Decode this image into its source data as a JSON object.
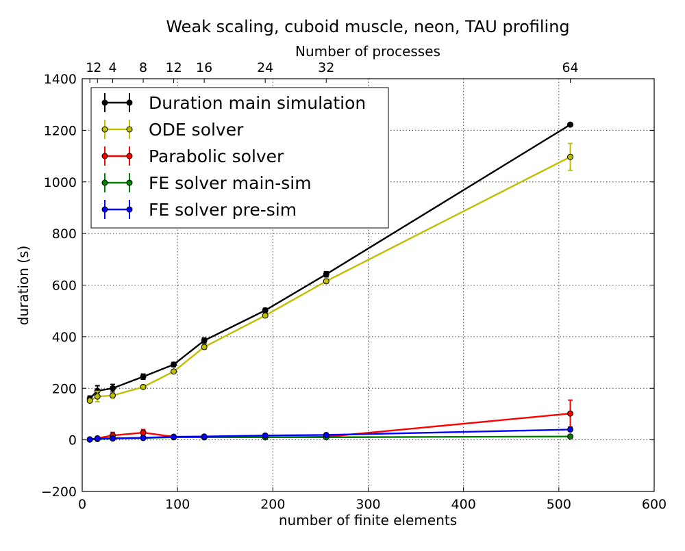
{
  "chart_data": {
    "type": "line",
    "title": "Weak scaling, cuboid muscle, neon, TAU profiling",
    "xlabel": "number of finite elements",
    "ylabel": "duration (s)",
    "top_xlabel": "Number of processes",
    "xlim": [
      0,
      600
    ],
    "ylim": [
      -200,
      1400
    ],
    "x_ticks": [
      0,
      100,
      200,
      300,
      400,
      500,
      600
    ],
    "y_ticks": [
      -200,
      0,
      200,
      400,
      600,
      800,
      1000,
      1200,
      1400
    ],
    "x_tick_labels": [
      "0",
      "100",
      "200",
      "300",
      "400",
      "500",
      "600"
    ],
    "y_tick_labels": [
      "−200",
      "0",
      "200",
      "400",
      "600",
      "800",
      "1000",
      "1200",
      "1400"
    ],
    "top_ticks": [
      {
        "x": 8,
        "label": "1"
      },
      {
        "x": 16,
        "label": "2"
      },
      {
        "x": 32,
        "label": "4"
      },
      {
        "x": 64,
        "label": "8"
      },
      {
        "x": 96,
        "label": "12"
      },
      {
        "x": 128,
        "label": "16"
      },
      {
        "x": 192,
        "label": "24"
      },
      {
        "x": 256,
        "label": "32"
      },
      {
        "x": 512,
        "label": "64"
      }
    ],
    "grid": true,
    "legend_position": "top-left",
    "x": [
      8,
      16,
      32,
      64,
      96,
      128,
      192,
      256,
      512
    ],
    "series": [
      {
        "name": "Duration main simulation",
        "color": "#000000",
        "values": [
          160,
          190,
          200,
          245,
          292,
          385,
          502,
          642,
          1222
        ],
        "errors": [
          10,
          20,
          15,
          10,
          8,
          10,
          8,
          10,
          5
        ]
      },
      {
        "name": "ODE solver",
        "color": "#bfbf00",
        "values": [
          152,
          168,
          172,
          205,
          265,
          360,
          482,
          615,
          1097
        ],
        "errors": [
          8,
          20,
          10,
          6,
          6,
          8,
          6,
          8,
          52
        ]
      },
      {
        "name": "Parabolic solver",
        "color": "#ff0000",
        "values": [
          2,
          6,
          17,
          28,
          12,
          10,
          10,
          12,
          102
        ],
        "errors": [
          2,
          3,
          12,
          12,
          3,
          2,
          2,
          2,
          52
        ]
      },
      {
        "name": "FE solver main-sim",
        "color": "#008000",
        "values": [
          1,
          3,
          5,
          7,
          10,
          10,
          10,
          10,
          13
        ],
        "errors": [
          1,
          1,
          1,
          1,
          1,
          1,
          1,
          1,
          1
        ]
      },
      {
        "name": "FE solver pre-sim",
        "color": "#0000ff",
        "values": [
          2,
          5,
          6,
          8,
          12,
          13,
          17,
          19,
          40
        ],
        "errors": [
          1,
          1,
          1,
          1,
          1,
          1,
          1,
          1,
          2
        ]
      }
    ]
  }
}
